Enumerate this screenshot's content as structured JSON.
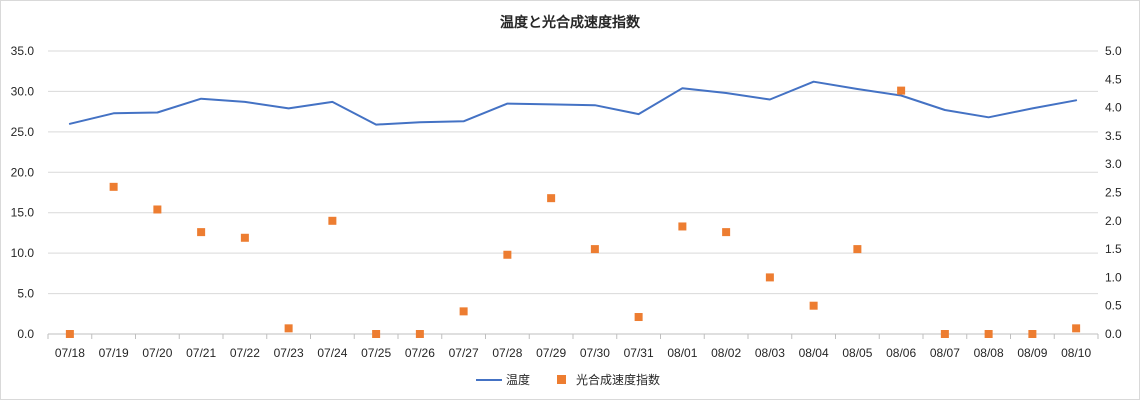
{
  "chart_data": {
    "type": "line",
    "title": "温度と光合成速度指数",
    "categories": [
      "07/18",
      "07/19",
      "07/20",
      "07/21",
      "07/22",
      "07/23",
      "07/24",
      "07/25",
      "07/26",
      "07/27",
      "07/28",
      "07/29",
      "07/30",
      "07/31",
      "08/01",
      "08/02",
      "08/03",
      "08/04",
      "08/05",
      "08/06",
      "08/07",
      "08/08",
      "08/09",
      "08/10"
    ],
    "series": [
      {
        "name": "温度",
        "type": "line",
        "axis": "left",
        "color": "#4472c4",
        "values": [
          26.0,
          27.3,
          27.4,
          29.1,
          28.7,
          27.9,
          28.7,
          25.9,
          26.2,
          26.3,
          28.5,
          28.4,
          28.3,
          27.2,
          30.4,
          29.8,
          29.0,
          31.2,
          30.3,
          29.5,
          27.7,
          26.8,
          27.9,
          28.9
        ]
      },
      {
        "name": "光合成速度指数",
        "type": "scatter",
        "axis": "right",
        "color": "#ed7d31",
        "values": [
          0.0,
          2.6,
          2.2,
          1.8,
          1.7,
          0.1,
          2.0,
          0.0,
          0.0,
          0.4,
          1.4,
          2.4,
          1.5,
          0.3,
          1.9,
          1.8,
          1.0,
          0.5,
          1.5,
          4.3,
          0.0,
          0.0,
          0.0,
          0.1
        ]
      }
    ],
    "y_left": {
      "min": 0,
      "max": 35,
      "step": 5,
      "tick_labels": [
        "0.0",
        "5.0",
        "10.0",
        "15.0",
        "20.0",
        "25.0",
        "30.0",
        "35.0"
      ]
    },
    "y_right": {
      "min": 0,
      "max": 5,
      "step": 0.5,
      "tick_labels": [
        "0.0",
        "0.5",
        "1.0",
        "1.5",
        "2.0",
        "2.5",
        "3.0",
        "3.5",
        "4.0",
        "4.5",
        "5.0"
      ]
    },
    "grid": true,
    "legend_position": "bottom"
  },
  "legend": {
    "items": [
      {
        "label": "温度",
        "marker": "line",
        "color": "#4472c4"
      },
      {
        "label": "光合成速度指数",
        "marker": "square",
        "color": "#ed7d31"
      }
    ]
  }
}
